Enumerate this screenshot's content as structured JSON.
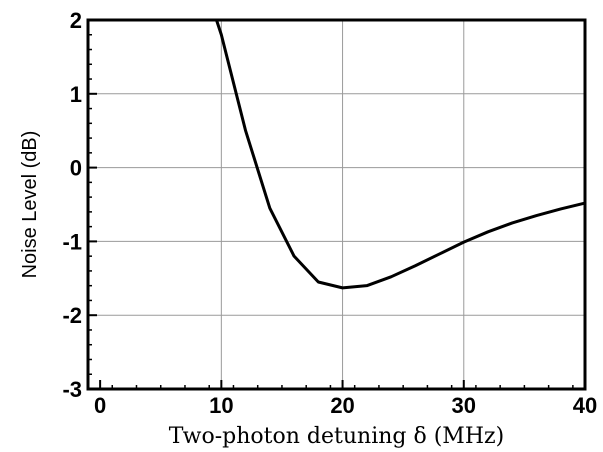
{
  "chart_data": {
    "type": "line",
    "title": "",
    "xlabel": "Two-photon detuning δ (MHz)",
    "ylabel": "Noise Level (dB)",
    "xlim": [
      -1,
      40
    ],
    "ylim": [
      -3,
      2
    ],
    "xticks": [
      0,
      10,
      20,
      30,
      40
    ],
    "xtick_labels": [
      "0",
      "10",
      "20",
      "30",
      "40"
    ],
    "yticks": [
      -3,
      -2,
      -1,
      0,
      1,
      2
    ],
    "ytick_labels": [
      "-3",
      "-2",
      "-1",
      "0",
      "1",
      "2"
    ],
    "grid": true,
    "legend": "none",
    "series": [
      {
        "color": "#000000",
        "x": [
          9.6,
          10,
          12,
          14,
          16,
          18,
          20,
          22,
          24,
          26,
          28,
          30,
          32,
          34,
          36,
          38,
          40
        ],
        "y": [
          2.0,
          1.8,
          0.5,
          -0.55,
          -1.2,
          -1.55,
          -1.63,
          -1.6,
          -1.48,
          -1.33,
          -1.17,
          -1.01,
          -0.87,
          -0.75,
          -0.65,
          -0.56,
          -0.48
        ]
      }
    ]
  }
}
